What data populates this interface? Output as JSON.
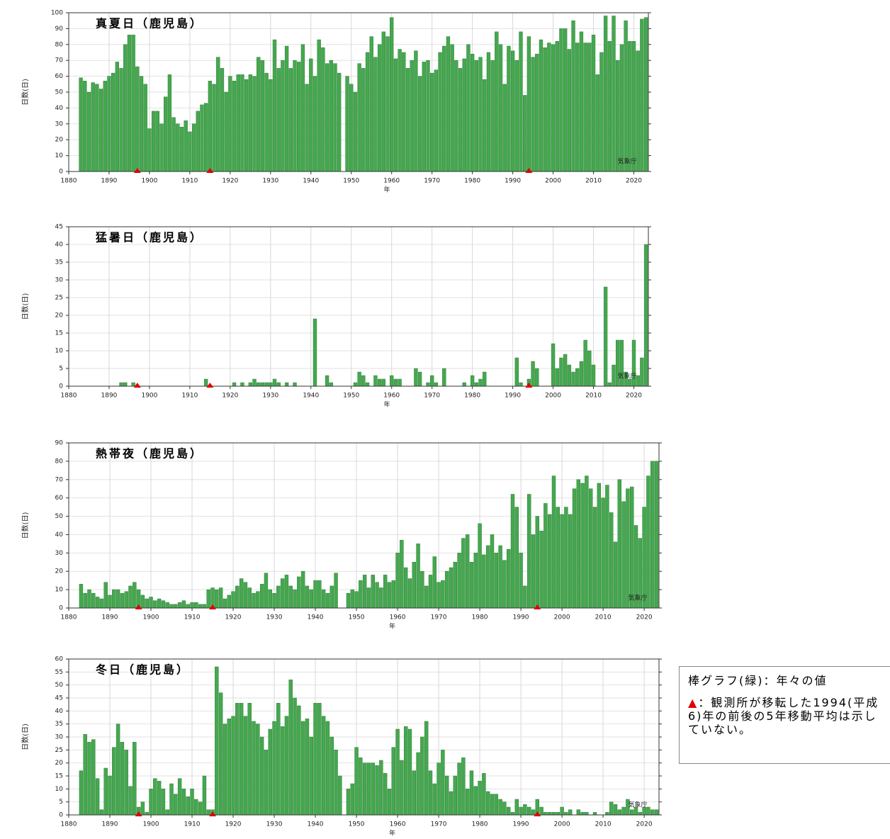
{
  "chart_data": [
    {
      "type": "bar",
      "title": "真夏日（鹿児島）",
      "ylabel": "日数(日)",
      "xlabel": "年",
      "source": "気象庁",
      "color": "#45a84f",
      "grid": true,
      "xlim": [
        1880,
        2023.6
      ],
      "xticks": [
        1880,
        1890,
        1900,
        1910,
        1920,
        1930,
        1940,
        1950,
        1960,
        1970,
        1980,
        1990,
        2000,
        2010,
        2020
      ],
      "ylim": [
        0,
        100
      ],
      "yticks": [
        0,
        10,
        20,
        30,
        40,
        50,
        60,
        70,
        80,
        90,
        100
      ],
      "markers": [
        1897,
        1915,
        1994
      ],
      "x": [
        1883,
        1884,
        1885,
        1886,
        1887,
        1888,
        1889,
        1890,
        1891,
        1892,
        1893,
        1894,
        1895,
        1896,
        1897,
        1898,
        1899,
        1900,
        1901,
        1902,
        1903,
        1904,
        1905,
        1906,
        1907,
        1908,
        1909,
        1910,
        1911,
        1912,
        1913,
        1914,
        1915,
        1916,
        1917,
        1918,
        1919,
        1920,
        1921,
        1922,
        1923,
        1924,
        1925,
        1926,
        1927,
        1928,
        1929,
        1930,
        1931,
        1932,
        1933,
        1934,
        1935,
        1936,
        1937,
        1938,
        1939,
        1940,
        1941,
        1942,
        1943,
        1944,
        1945,
        1946,
        1947,
        1948,
        1949,
        1950,
        1951,
        1952,
        1953,
        1954,
        1955,
        1956,
        1957,
        1958,
        1959,
        1960,
        1961,
        1962,
        1963,
        1964,
        1965,
        1966,
        1967,
        1968,
        1969,
        1970,
        1971,
        1972,
        1973,
        1974,
        1975,
        1976,
        1977,
        1978,
        1979,
        1980,
        1981,
        1982,
        1983,
        1984,
        1985,
        1986,
        1987,
        1988,
        1989,
        1990,
        1991,
        1992,
        1993,
        1994,
        1995,
        1996,
        1997,
        1998,
        1999,
        2000,
        2001,
        2002,
        2003,
        2004,
        2005,
        2006,
        2007,
        2008,
        2009,
        2010,
        2011,
        2012,
        2013,
        2014,
        2015,
        2016,
        2017,
        2018,
        2019,
        2020,
        2021,
        2022,
        2023
      ],
      "values": [
        59,
        57,
        50,
        56,
        55,
        52,
        57,
        60,
        62,
        69,
        65,
        80,
        86,
        86,
        66,
        60,
        55,
        27,
        38,
        38,
        30,
        47,
        61,
        34,
        30,
        28,
        32,
        25,
        30,
        38,
        42,
        43,
        57,
        55,
        72,
        65,
        50,
        60,
        57,
        61,
        61,
        58,
        61,
        60,
        72,
        70,
        62,
        58,
        83,
        65,
        70,
        79,
        65,
        70,
        69,
        80,
        55,
        71,
        60,
        83,
        78,
        68,
        70,
        68,
        62,
        null,
        60,
        55,
        50,
        68,
        65,
        75,
        85,
        72,
        80,
        88,
        85,
        97,
        71,
        77,
        75,
        65,
        70,
        76,
        60,
        69,
        70,
        62,
        64,
        75,
        79,
        85,
        80,
        70,
        65,
        71,
        80,
        74,
        70,
        72,
        58,
        75,
        70,
        88,
        80,
        55,
        79,
        76,
        70,
        88,
        48,
        85,
        72,
        74,
        83,
        78,
        81,
        80,
        82,
        90,
        90,
        77,
        95,
        81,
        88,
        81,
        81,
        86,
        61,
        75,
        98,
        82,
        98,
        70,
        80,
        95,
        82,
        82,
        76,
        96,
        97
      ]
    },
    {
      "type": "bar",
      "title": "猛暑日（鹿児島）",
      "ylabel": "日数(日)",
      "xlabel": "年",
      "source": "気象庁",
      "color": "#45a84f",
      "grid": true,
      "xlim": [
        1880,
        2023.6
      ],
      "xticks": [
        1880,
        1890,
        1900,
        1910,
        1920,
        1930,
        1940,
        1950,
        1960,
        1970,
        1980,
        1990,
        2000,
        2010,
        2020
      ],
      "ylim": [
        0,
        45
      ],
      "yticks": [
        0,
        5,
        10,
        15,
        20,
        25,
        30,
        35,
        40,
        45
      ],
      "markers": [
        1897,
        1915,
        1994
      ],
      "x": [
        1883,
        1884,
        1885,
        1886,
        1887,
        1888,
        1889,
        1890,
        1891,
        1892,
        1893,
        1894,
        1895,
        1896,
        1897,
        1898,
        1899,
        1900,
        1901,
        1902,
        1903,
        1904,
        1905,
        1906,
        1907,
        1908,
        1909,
        1910,
        1911,
        1912,
        1913,
        1914,
        1915,
        1916,
        1917,
        1918,
        1919,
        1920,
        1921,
        1922,
        1923,
        1924,
        1925,
        1926,
        1927,
        1928,
        1929,
        1930,
        1931,
        1932,
        1933,
        1934,
        1935,
        1936,
        1937,
        1938,
        1939,
        1940,
        1941,
        1942,
        1943,
        1944,
        1945,
        1946,
        1947,
        1948,
        1949,
        1950,
        1951,
        1952,
        1953,
        1954,
        1955,
        1956,
        1957,
        1958,
        1959,
        1960,
        1961,
        1962,
        1963,
        1964,
        1965,
        1966,
        1967,
        1968,
        1969,
        1970,
        1971,
        1972,
        1973,
        1974,
        1975,
        1976,
        1977,
        1978,
        1979,
        1980,
        1981,
        1982,
        1983,
        1984,
        1985,
        1986,
        1987,
        1988,
        1989,
        1990,
        1991,
        1992,
        1993,
        1994,
        1995,
        1996,
        1997,
        1998,
        1999,
        2000,
        2001,
        2002,
        2003,
        2004,
        2005,
        2006,
        2007,
        2008,
        2009,
        2010,
        2011,
        2012,
        2013,
        2014,
        2015,
        2016,
        2017,
        2018,
        2019,
        2020,
        2021,
        2022,
        2023
      ],
      "values": [
        0,
        0,
        0,
        0,
        0,
        0,
        0,
        0,
        0,
        0,
        1,
        1,
        0,
        1,
        0,
        0,
        0,
        0,
        0,
        0,
        0,
        0,
        0,
        0,
        0,
        0,
        0,
        0,
        0,
        0,
        0,
        2,
        0,
        0,
        0,
        0,
        0,
        0,
        1,
        0,
        1,
        0,
        1,
        2,
        1,
        1,
        1,
        1,
        2,
        1,
        0,
        1,
        0,
        1,
        0,
        0,
        0,
        0,
        19,
        0,
        0,
        3,
        1,
        0,
        null,
        0,
        0,
        0,
        1,
        4,
        3,
        1,
        0,
        3,
        2,
        2,
        0,
        3,
        2,
        2,
        0,
        0,
        0,
        5,
        4,
        0,
        1,
        3,
        1,
        0,
        5,
        0,
        0,
        0,
        0,
        1,
        0,
        3,
        1,
        2,
        4,
        0,
        0,
        0,
        0,
        0,
        0,
        0,
        8,
        1,
        0,
        2,
        7,
        5,
        0,
        0,
        0,
        12,
        5,
        8,
        9,
        6,
        4,
        5,
        7,
        13,
        10,
        6,
        0,
        0,
        28,
        1,
        6,
        13,
        13,
        4,
        2,
        13,
        3,
        8,
        40
      ]
    },
    {
      "type": "bar",
      "title": "熱帯夜（鹿児島）",
      "ylabel": "日数(日)",
      "xlabel": "年",
      "source": "気象庁",
      "color": "#45a84f",
      "grid": true,
      "xlim": [
        1880,
        2023.6
      ],
      "xticks": [
        1880,
        1890,
        1900,
        1910,
        1920,
        1930,
        1940,
        1950,
        1960,
        1970,
        1980,
        1990,
        2000,
        2010,
        2020
      ],
      "ylim": [
        0,
        90
      ],
      "yticks": [
        0,
        10,
        20,
        30,
        40,
        50,
        60,
        70,
        80,
        90
      ],
      "markers": [
        1897,
        1915,
        1994
      ],
      "x": [
        1883,
        1884,
        1885,
        1886,
        1887,
        1888,
        1889,
        1890,
        1891,
        1892,
        1893,
        1894,
        1895,
        1896,
        1897,
        1898,
        1899,
        1900,
        1901,
        1902,
        1903,
        1904,
        1905,
        1906,
        1907,
        1908,
        1909,
        1910,
        1911,
        1912,
        1913,
        1914,
        1915,
        1916,
        1917,
        1918,
        1919,
        1920,
        1921,
        1922,
        1923,
        1924,
        1925,
        1926,
        1927,
        1928,
        1929,
        1930,
        1931,
        1932,
        1933,
        1934,
        1935,
        1936,
        1937,
        1938,
        1939,
        1940,
        1941,
        1942,
        1943,
        1944,
        1945,
        1946,
        1947,
        1948,
        1949,
        1950,
        1951,
        1952,
        1953,
        1954,
        1955,
        1956,
        1957,
        1958,
        1959,
        1960,
        1961,
        1962,
        1963,
        1964,
        1965,
        1966,
        1967,
        1968,
        1969,
        1970,
        1971,
        1972,
        1973,
        1974,
        1975,
        1976,
        1977,
        1978,
        1979,
        1980,
        1981,
        1982,
        1983,
        1984,
        1985,
        1986,
        1987,
        1988,
        1989,
        1990,
        1991,
        1992,
        1993,
        1994,
        1995,
        1996,
        1997,
        1998,
        1999,
        2000,
        2001,
        2002,
        2003,
        2004,
        2005,
        2006,
        2007,
        2008,
        2009,
        2010,
        2011,
        2012,
        2013,
        2014,
        2015,
        2016,
        2017,
        2018,
        2019,
        2020,
        2021,
        2022,
        2023
      ],
      "values": [
        13,
        8,
        10,
        8,
        6,
        5,
        14,
        7,
        10,
        10,
        8,
        9,
        12,
        14,
        10,
        7,
        5,
        6,
        4,
        5,
        4,
        3,
        2,
        2,
        3,
        4,
        2,
        3,
        3,
        2,
        2,
        10,
        11,
        10,
        11,
        5,
        7,
        9,
        12,
        16,
        14,
        11,
        8,
        9,
        13,
        19,
        10,
        8,
        12,
        16,
        18,
        12,
        10,
        17,
        20,
        12,
        10,
        15,
        15,
        10,
        8,
        12,
        19,
        null,
        null,
        8,
        10,
        9,
        15,
        18,
        11,
        18,
        14,
        11,
        18,
        14,
        15,
        30,
        37,
        22,
        16,
        25,
        35,
        20,
        12,
        18,
        28,
        14,
        15,
        20,
        22,
        25,
        30,
        38,
        40,
        25,
        30,
        46,
        29,
        34,
        40,
        30,
        34,
        26,
        32,
        62,
        55,
        30,
        12,
        62,
        40,
        50,
        42,
        57,
        51,
        72,
        55,
        51,
        55,
        51,
        65,
        70,
        68,
        72,
        65,
        55,
        68,
        60,
        67,
        52,
        36,
        70,
        58,
        65,
        66,
        45,
        38,
        55,
        72,
        80,
        80
      ]
    },
    {
      "type": "bar",
      "title": "冬日（鹿児島）",
      "ylabel": "日数(日)",
      "xlabel": "年",
      "source": "気象庁",
      "color": "#45a84f",
      "grid": true,
      "xlim": [
        1880,
        2023.6
      ],
      "xticks": [
        1880,
        1890,
        1900,
        1910,
        1920,
        1930,
        1940,
        1950,
        1960,
        1970,
        1980,
        1990,
        2000,
        2010,
        2020
      ],
      "ylim": [
        0,
        60
      ],
      "yticks": [
        0,
        5,
        10,
        15,
        20,
        25,
        30,
        35,
        40,
        45,
        50,
        55,
        60
      ],
      "markers": [
        1897,
        1915,
        1994
      ],
      "x": [
        1883,
        1884,
        1885,
        1886,
        1887,
        1888,
        1889,
        1890,
        1891,
        1892,
        1893,
        1894,
        1895,
        1896,
        1897,
        1898,
        1899,
        1900,
        1901,
        1902,
        1903,
        1904,
        1905,
        1906,
        1907,
        1908,
        1909,
        1910,
        1911,
        1912,
        1913,
        1914,
        1915,
        1916,
        1917,
        1918,
        1919,
        1920,
        1921,
        1922,
        1923,
        1924,
        1925,
        1926,
        1927,
        1928,
        1929,
        1930,
        1931,
        1932,
        1933,
        1934,
        1935,
        1936,
        1937,
        1938,
        1939,
        1940,
        1941,
        1942,
        1943,
        1944,
        1945,
        1946,
        1947,
        1948,
        1949,
        1950,
        1951,
        1952,
        1953,
        1954,
        1955,
        1956,
        1957,
        1958,
        1959,
        1960,
        1961,
        1962,
        1963,
        1964,
        1965,
        1966,
        1967,
        1968,
        1969,
        1970,
        1971,
        1972,
        1973,
        1974,
        1975,
        1976,
        1977,
        1978,
        1979,
        1980,
        1981,
        1982,
        1983,
        1984,
        1985,
        1986,
        1987,
        1988,
        1989,
        1990,
        1991,
        1992,
        1993,
        1994,
        1995,
        1996,
        1997,
        1998,
        1999,
        2000,
        2001,
        2002,
        2003,
        2004,
        2005,
        2006,
        2007,
        2008,
        2009,
        2010,
        2011,
        2012,
        2013,
        2014,
        2015,
        2016,
        2017,
        2018,
        2019,
        2020,
        2021,
        2022,
        2023
      ],
      "values": [
        17,
        31,
        28,
        29,
        14,
        2,
        18,
        15,
        26,
        35,
        28,
        25,
        11,
        28,
        3,
        5,
        1,
        10,
        14,
        13,
        10,
        2,
        12,
        8,
        14,
        10,
        7,
        10,
        6,
        5,
        15,
        2,
        2,
        57,
        47,
        35,
        37,
        38,
        43,
        43,
        38,
        43,
        36,
        35,
        30,
        25,
        33,
        36,
        43,
        34,
        38,
        52,
        45,
        42,
        36,
        37,
        30,
        43,
        43,
        38,
        36,
        30,
        25,
        15,
        null,
        10,
        12,
        26,
        22,
        20,
        20,
        20,
        19,
        21,
        16,
        10,
        26,
        33,
        21,
        34,
        33,
        17,
        24,
        30,
        36,
        17,
        12,
        20,
        25,
        15,
        9,
        15,
        20,
        22,
        10,
        17,
        11,
        13,
        16,
        9,
        8,
        8,
        6,
        5,
        3,
        1,
        6,
        3,
        4,
        3,
        2,
        6,
        3,
        1,
        1,
        1,
        1,
        3,
        1,
        2,
        0,
        2,
        1,
        1,
        0,
        1,
        0,
        0,
        1,
        5,
        4,
        2,
        3,
        6,
        2,
        3,
        1,
        3,
        3,
        2,
        2
      ]
    }
  ],
  "note": {
    "heading": "棒グラフ(緑)：年々の値",
    "symbol": "▲",
    "text": "：観測所が移転した1994(平成6)年の前後の5年移動平均は示していない。"
  }
}
